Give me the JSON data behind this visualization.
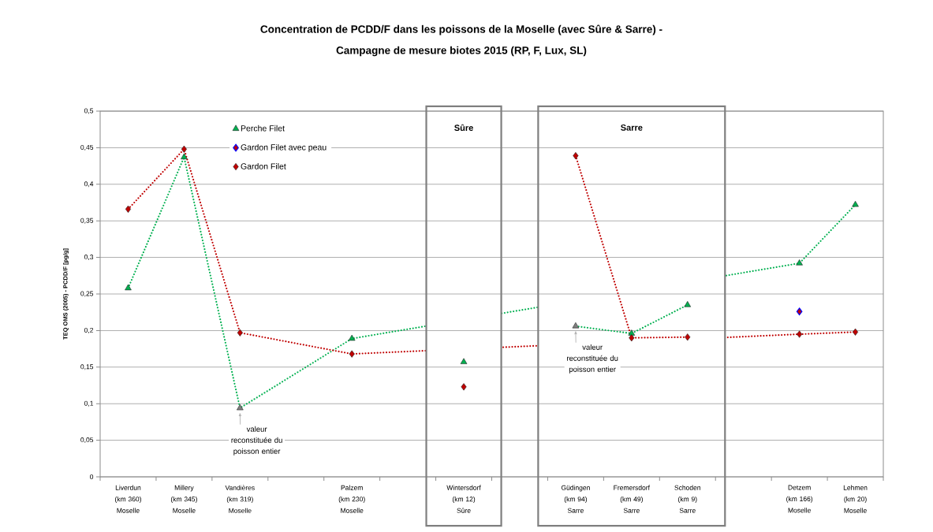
{
  "chart_data": {
    "type": "line",
    "title": "Concentration de PCDD/F dans les poissons de la Moselle (avec Sûre & Sarre) -",
    "subtitle": "Campagne de mesure biotes 2015 (RP, F, Lux, SL)",
    "ylabel": "TEQ OMS (2005) - PCDD/F  [pg/g]",
    "categories": [
      "Liverdun (km 360) Moselle",
      "Millery (km 345) Moselle",
      "Vandières (km 319) Moselle",
      null,
      "Palzem (km 230) Moselle",
      null,
      "Wintersdorf (km 12) Sûre",
      null,
      "Güdingen (km 94) Sarre",
      "Fremersdorf (km 49) Sarre",
      "Schoden (km 9) Sarre",
      null,
      "Detzem (km 166) Moselle",
      "Lehmen (km 20) Moselle"
    ],
    "ylim": [
      0,
      0.5
    ],
    "yticks": [
      0,
      {
        "value": 0.05,
        "label": "0,05"
      },
      {
        "value": 0.1,
        "label": "0,1"
      },
      {
        "value": 0.15,
        "label": "0,15"
      },
      {
        "value": 0.2,
        "label": "0,2"
      },
      {
        "value": 0.25,
        "label": "0,25"
      },
      {
        "value": 0.3,
        "label": "0,3"
      },
      {
        "value": 0.35,
        "label": "0,35"
      },
      {
        "value": 0.4,
        "label": "0,4"
      },
      {
        "value": 0.45,
        "label": "0,45"
      },
      {
        "value": 0.5,
        "label": "0,5"
      }
    ],
    "grid": "y",
    "legend": "top left",
    "line_style": "dotted",
    "series": [
      {
        "name": "Perche Filet",
        "marker": "triangle",
        "color": "#00b050",
        "colors": [
          "#00b050",
          "#00b050",
          "#7f7f7f",
          null,
          "#00b050",
          null,
          null,
          null,
          null,
          null,
          null,
          null,
          "#00b050",
          "#00b050"
        ],
        "values": [
          0.258,
          0.437,
          0.094,
          null,
          0.189,
          null,
          null,
          null,
          null,
          null,
          null,
          null,
          0.292,
          0.372
        ]
      },
      {
        "name": "Gardon Filet avec peau",
        "type": "scatter",
        "marker": "diamond",
        "color": "#0000ff",
        "values": [
          null,
          null,
          null,
          null,
          null,
          null,
          null,
          null,
          null,
          null,
          null,
          null,
          0.226,
          null
        ]
      },
      {
        "name": "Gardon Filet",
        "marker": "diamond",
        "color": "#c00000",
        "values": [
          0.366,
          0.448,
          0.197,
          null,
          0.168,
          null,
          null,
          null,
          null,
          null,
          null,
          null,
          0.195,
          0.198
        ]
      },
      {
        "type": "scatter",
        "marker": "triangle",
        "color": "#00b050",
        "values": [
          null,
          null,
          null,
          null,
          null,
          null,
          0.157,
          null,
          null,
          null,
          null,
          null,
          null,
          null
        ]
      },
      {
        "type": "scatter",
        "marker": "diamond",
        "color": "#c00000",
        "values": [
          null,
          null,
          null,
          null,
          null,
          null,
          0.123,
          null,
          null,
          null,
          null,
          null,
          null,
          null
        ]
      },
      {
        "marker": "triangle",
        "color": "#00b050",
        "colors": [
          null,
          null,
          null,
          null,
          null,
          null,
          null,
          null,
          "#7f7f7f",
          "#00b050",
          "#00b050",
          null,
          null,
          null
        ],
        "values": [
          null,
          null,
          null,
          null,
          null,
          null,
          null,
          null,
          0.206,
          0.196,
          0.235,
          null,
          null,
          null
        ]
      },
      {
        "marker": "diamond",
        "color": "#c00000",
        "values": [
          null,
          null,
          null,
          null,
          null,
          null,
          null,
          null,
          0.439,
          0.19,
          0.191,
          null,
          null,
          null
        ]
      }
    ],
    "annotations": [
      "Sûre",
      "Sarre",
      {
        "text": "valeur reconstituée du poisson entier",
        "x": "Vandières (km 319) Moselle",
        "y": 0.094
      },
      {
        "text": "valeur reconstituée du poisson entier",
        "x": "Güdingen (km 94) Sarre",
        "y": 0.206
      }
    ]
  }
}
